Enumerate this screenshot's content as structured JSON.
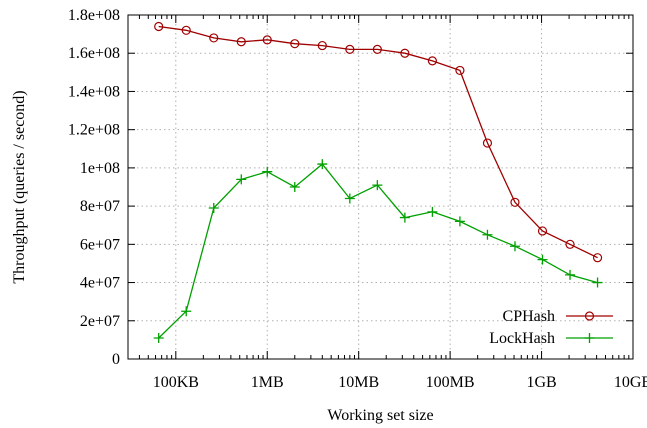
{
  "chart_data": {
    "type": "line",
    "xlabel": "Working set size",
    "ylabel": "Throughput (queries / second)",
    "x_scale": "log",
    "x_ticks": [
      {
        "value": 100000,
        "label": "100KB"
      },
      {
        "value": 1000000,
        "label": "1MB"
      },
      {
        "value": 10000000,
        "label": "10MB"
      },
      {
        "value": 100000000,
        "label": "100MB"
      },
      {
        "value": 1000000000,
        "label": "1GB"
      },
      {
        "value": 10000000000,
        "label": "10GB"
      }
    ],
    "xlim": [
      30000,
      10000000000
    ],
    "ylim": [
      0,
      180000000
    ],
    "y_ticks": [
      {
        "value": 0,
        "label": "0"
      },
      {
        "value": 20000000,
        "label": "2e+07"
      },
      {
        "value": 40000000,
        "label": "4e+07"
      },
      {
        "value": 60000000,
        "label": "6e+07"
      },
      {
        "value": 80000000,
        "label": "8e+07"
      },
      {
        "value": 100000000,
        "label": "1e+08"
      },
      {
        "value": 120000000,
        "label": "1.2e+08"
      },
      {
        "value": 140000000,
        "label": "1.4e+08"
      },
      {
        "value": 160000000,
        "label": "1.6e+08"
      },
      {
        "value": 180000000,
        "label": "1.8e+08"
      }
    ],
    "grid": true,
    "legend_position": "bottom-right",
    "series": [
      {
        "name": "CPHash",
        "color": "#a00000",
        "marker": "circle",
        "x": [
          65000,
          130000,
          260000,
          520000,
          1000000,
          2000000,
          4000000,
          8000000,
          16000000,
          32000000,
          64000000,
          128000000,
          256000000,
          512000000,
          1024000000,
          2048000000,
          4096000000
        ],
        "values": [
          174000000,
          172000000,
          168000000,
          166000000,
          167000000,
          165000000,
          164000000,
          162000000,
          162000000,
          160000000,
          156000000,
          151000000,
          113000000,
          82000000,
          67000000,
          60000000,
          53000000
        ]
      },
      {
        "name": "LockHash",
        "color": "#00a000",
        "marker": "plus",
        "x": [
          65000,
          130000,
          260000,
          520000,
          1000000,
          2000000,
          4000000,
          8000000,
          16000000,
          32000000,
          64000000,
          128000000,
          256000000,
          512000000,
          1024000000,
          2048000000,
          4096000000
        ],
        "values": [
          11000000,
          25000000,
          79000000,
          94000000,
          98000000,
          90000000,
          102000000,
          84000000,
          91000000,
          74000000,
          77000000,
          72000000,
          65000000,
          59000000,
          52000000,
          44000000,
          40000000
        ]
      }
    ]
  }
}
